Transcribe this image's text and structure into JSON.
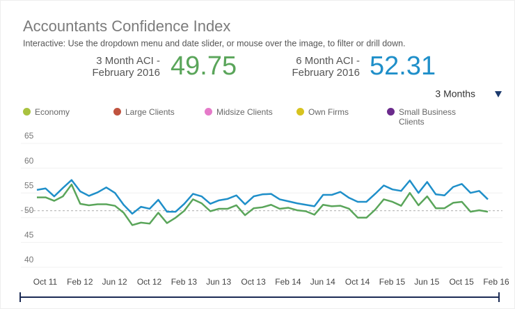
{
  "chart_data": {
    "type": "line",
    "title": "Accountants Confidence Index",
    "subtitle": "Interactive: Use the dropdown menu and date slider, or mouse over the image, to filter or drill down.",
    "kpis": [
      {
        "label_lines": [
          "3 Month ACI -",
          "February 2016"
        ],
        "value": 49.75,
        "color": "#5aa55a"
      },
      {
        "label_lines": [
          "6 Month ACI -",
          "February 2016"
        ],
        "value": 52.31,
        "color": "#1f8fc9"
      }
    ],
    "dropdown": "3 Months",
    "legend": [
      {
        "label": "Economy",
        "color": "#a9c23f"
      },
      {
        "label": "Large Clients",
        "color": "#c0533f"
      },
      {
        "label": "Midsize Clients",
        "color": "#e57ac9"
      },
      {
        "label": "Own Firms",
        "color": "#d7c320"
      },
      {
        "label": "Small Business Clients",
        "color": "#6b2b8c"
      }
    ],
    "categories": [
      "Oct 11",
      null,
      null,
      null,
      "Feb 12",
      null,
      null,
      null,
      "Jun 12",
      null,
      null,
      null,
      "Oct 12",
      null,
      null,
      null,
      "Feb 13",
      null,
      null,
      null,
      "Jun 13",
      null,
      null,
      null,
      "Oct 13",
      null,
      null,
      null,
      "Feb 14",
      null,
      null,
      null,
      "Jun 14",
      null,
      null,
      null,
      "Oct 14",
      null,
      null,
      null,
      "Feb 15",
      null,
      null,
      null,
      "Jun 15",
      null,
      null,
      null,
      "Oct 15",
      null,
      null,
      null,
      "Feb 16"
    ],
    "series": [
      {
        "color": "#1f8fc9",
        "values": [
          54.2,
          54.5,
          52.9,
          54.6,
          56.2,
          53.9,
          53.0,
          53.7,
          54.7,
          53.6,
          51.2,
          49.4,
          50.8,
          50.4,
          52.2,
          49.8,
          49.8,
          51.4,
          53.4,
          52.9,
          51.4,
          52.1,
          52.4,
          53.1,
          51.3,
          52.9,
          53.3,
          53.4,
          52.3,
          51.9,
          51.5,
          51.2,
          50.9,
          53.2,
          53.2,
          53.8,
          52.6,
          51.8,
          51.8,
          53.4,
          55.1,
          54.3,
          54.0,
          56.1,
          53.6,
          55.8,
          53.3,
          53.1,
          54.8,
          55.4,
          53.6,
          54.0,
          52.3
        ]
      },
      {
        "color": "#5aa55a",
        "values": [
          52.7,
          52.7,
          52.0,
          52.9,
          55.3,
          51.4,
          51.1,
          51.3,
          51.3,
          51.0,
          49.6,
          47.1,
          47.6,
          47.4,
          49.6,
          47.5,
          48.6,
          50.0,
          52.3,
          51.5,
          49.9,
          50.4,
          50.4,
          51.1,
          49.1,
          50.5,
          50.7,
          51.2,
          50.4,
          50.6,
          50.1,
          49.9,
          49.2,
          51.2,
          50.9,
          51.0,
          50.4,
          48.6,
          48.6,
          50.2,
          52.3,
          51.8,
          51.0,
          53.6,
          51.1,
          52.9,
          50.5,
          50.5,
          51.6,
          51.8,
          49.8,
          50.1,
          49.8
        ]
      }
    ],
    "reference_line": 50,
    "ylim": [
      38.5,
      66
    ],
    "yticks": [
      40,
      45,
      50,
      55,
      60,
      65
    ],
    "grid": true
  }
}
